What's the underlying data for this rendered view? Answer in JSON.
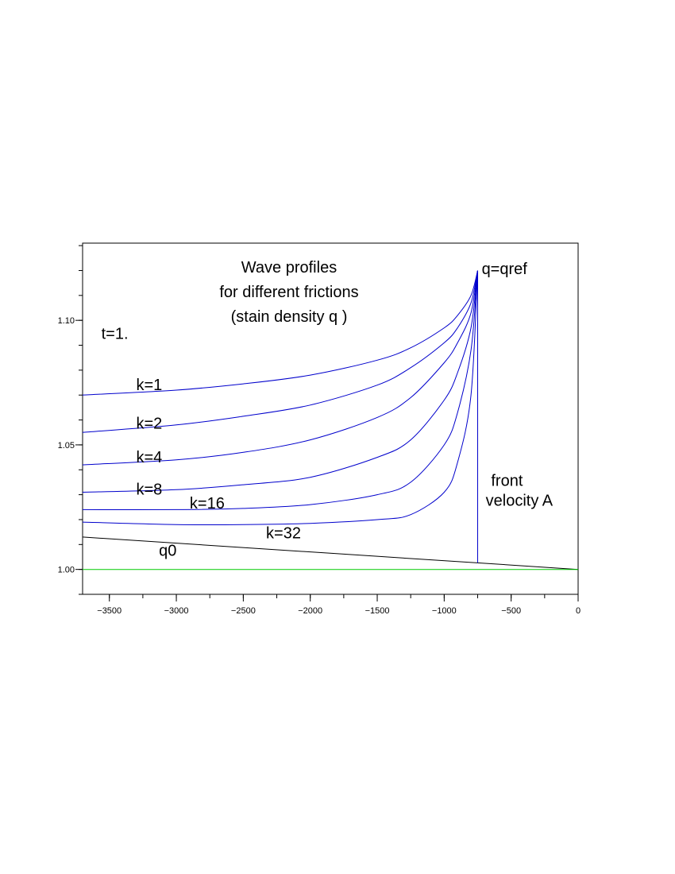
{
  "chart_data": {
    "type": "line",
    "title_lines": [
      "Wave profiles",
      "for different frictions",
      "(stain density q )"
    ],
    "xlabel": "",
    "ylabel": "",
    "xlim": [
      -3700,
      0
    ],
    "ylim": [
      0.99,
      1.131
    ],
    "x_ticks": [
      -3500,
      -3000,
      -2500,
      -2000,
      -1500,
      -1000,
      -500,
      0
    ],
    "x_tick_labels": [
      "−3500",
      "−3000",
      "−2500",
      "−2000",
      "−1500",
      "−1000",
      "−500",
      "0"
    ],
    "y_ticks": [
      1.0,
      1.05,
      1.1
    ],
    "y_tick_labels": [
      "1.00",
      "1.05",
      "1.10"
    ],
    "y_minor_step": 0.01,
    "x_minor_step": 250,
    "front_x": -750,
    "qref": 1.12,
    "time_label": "t=1.",
    "series": [
      {
        "name": "k=1",
        "k": 1,
        "color": "#0000cc",
        "points": [
          [
            -3700,
            1.07
          ],
          [
            -3000,
            1.072
          ],
          [
            -2500,
            1.0745
          ],
          [
            -2000,
            1.078
          ],
          [
            -1500,
            1.084
          ],
          [
            -1250,
            1.089
          ],
          [
            -1000,
            1.097
          ],
          [
            -900,
            1.102
          ],
          [
            -800,
            1.11
          ],
          [
            -750,
            1.12
          ]
        ]
      },
      {
        "name": "k=2",
        "k": 2,
        "color": "#0000cc",
        "points": [
          [
            -3700,
            1.055
          ],
          [
            -3000,
            1.058
          ],
          [
            -2500,
            1.0615
          ],
          [
            -2000,
            1.066
          ],
          [
            -1500,
            1.074
          ],
          [
            -1250,
            1.081
          ],
          [
            -1000,
            1.091
          ],
          [
            -900,
            1.097
          ],
          [
            -800,
            1.107
          ],
          [
            -750,
            1.12
          ]
        ]
      },
      {
        "name": "k=4",
        "k": 4,
        "color": "#0000cc",
        "points": [
          [
            -3700,
            1.042
          ],
          [
            -3000,
            1.044
          ],
          [
            -2500,
            1.047
          ],
          [
            -2000,
            1.052
          ],
          [
            -1500,
            1.061
          ],
          [
            -1250,
            1.069
          ],
          [
            -1000,
            1.083
          ],
          [
            -900,
            1.091
          ],
          [
            -800,
            1.103
          ],
          [
            -750,
            1.12
          ]
        ]
      },
      {
        "name": "k=8",
        "k": 8,
        "color": "#0000cc",
        "points": [
          [
            -3700,
            1.031
          ],
          [
            -3000,
            1.032
          ],
          [
            -2500,
            1.034
          ],
          [
            -2000,
            1.037
          ],
          [
            -1500,
            1.045
          ],
          [
            -1250,
            1.052
          ],
          [
            -1000,
            1.068
          ],
          [
            -900,
            1.079
          ],
          [
            -800,
            1.097
          ],
          [
            -750,
            1.12
          ]
        ]
      },
      {
        "name": "k=16",
        "k": 16,
        "color": "#0000cc",
        "points": [
          [
            -3700,
            1.024
          ],
          [
            -3000,
            1.024
          ],
          [
            -2500,
            1.0245
          ],
          [
            -2000,
            1.026
          ],
          [
            -1500,
            1.03
          ],
          [
            -1250,
            1.035
          ],
          [
            -1000,
            1.05
          ],
          [
            -900,
            1.063
          ],
          [
            -800,
            1.088
          ],
          [
            -750,
            1.12
          ]
        ]
      },
      {
        "name": "k=32",
        "k": 32,
        "color": "#0000cc",
        "points": [
          [
            -3700,
            1.019
          ],
          [
            -3000,
            1.018
          ],
          [
            -2500,
            1.018
          ],
          [
            -2000,
            1.0185
          ],
          [
            -1500,
            1.02
          ],
          [
            -1250,
            1.022
          ],
          [
            -1000,
            1.031
          ],
          [
            -900,
            1.043
          ],
          [
            -800,
            1.07
          ],
          [
            -750,
            1.12
          ]
        ]
      },
      {
        "name": "q0",
        "color": "#000000",
        "points": [
          [
            -3700,
            1.013
          ],
          [
            0,
            1.0
          ]
        ]
      },
      {
        "name": "baseline",
        "color": "#00cc00",
        "points": [
          [
            -3700,
            1.0
          ],
          [
            0,
            1.0
          ]
        ]
      }
    ],
    "annotations": [
      {
        "id": "qref",
        "text": "q=qref",
        "x": -720,
        "y": 1.1185
      },
      {
        "id": "time",
        "text": "t=1.",
        "x": -3560,
        "y": 1.0925
      },
      {
        "id": "k1",
        "text": "k=1",
        "x": -3300,
        "y": 1.072
      },
      {
        "id": "k2",
        "text": "k=2",
        "x": -3300,
        "y": 1.0565
      },
      {
        "id": "k4",
        "text": "k=4",
        "x": -3300,
        "y": 1.043
      },
      {
        "id": "k8",
        "text": "k=8",
        "x": -3300,
        "y": 1.03
      },
      {
        "id": "k16",
        "text": "k=16",
        "x": -2900,
        "y": 1.0245
      },
      {
        "id": "k32",
        "text": "k=32",
        "x": -2330,
        "y": 1.0125
      },
      {
        "id": "q0",
        "text": "q0",
        "x": -3130,
        "y": 1.0055
      },
      {
        "id": "front",
        "text": "front",
        "x": -650,
        "y": 1.0335
      },
      {
        "id": "velocity",
        "text": "velocity A",
        "x": -690,
        "y": 1.0255
      }
    ]
  }
}
